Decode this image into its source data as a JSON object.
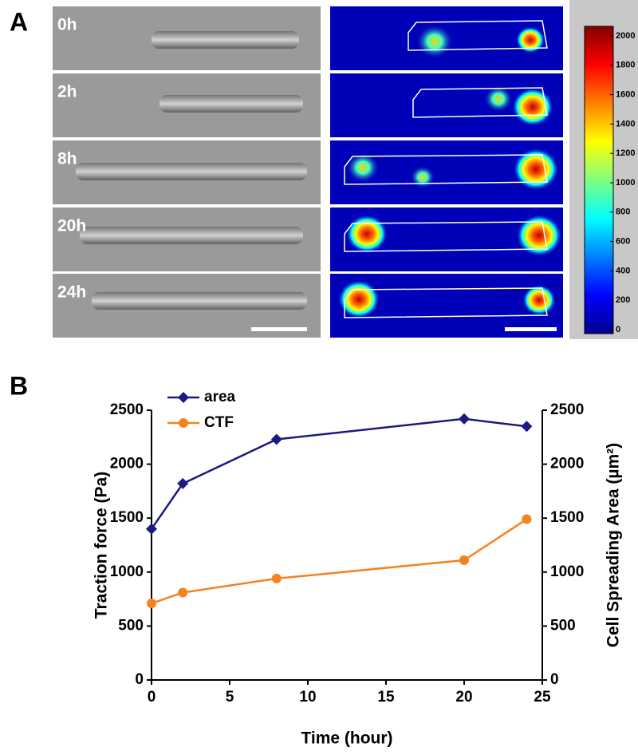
{
  "panel_a": {
    "label": "A",
    "time_labels": [
      "0h",
      "2h",
      "8h",
      "20h",
      "24h"
    ],
    "colorbar": {
      "lim": [
        0,
        2000
      ],
      "ticks": [
        0,
        200,
        400,
        600,
        800,
        1000,
        1200,
        1400,
        1600,
        1800,
        2000
      ]
    }
  },
  "panel_b_label": "B",
  "chart_data": {
    "type": "line",
    "x_label": "Time (hour)",
    "y_label": "Traction force (Pa)",
    "y2_label": "Cell Spreading Area (µm²)",
    "x": [
      0,
      2,
      8,
      20,
      24
    ],
    "xlim": [
      0,
      25
    ],
    "xticks": [
      0,
      5,
      10,
      15,
      20,
      25
    ],
    "ylim": [
      0,
      2500
    ],
    "yticks": [
      0,
      500,
      1000,
      1500,
      2000,
      2500
    ],
    "y2lim": [
      0,
      2500
    ],
    "y2ticks": [
      0,
      500,
      1000,
      1500,
      2000,
      2500
    ],
    "legend": "upper left",
    "series": [
      {
        "name": "area",
        "color": "#1a1a80",
        "marker": "diamond",
        "axis": "y2",
        "values": [
          1400,
          1820,
          2230,
          2420,
          2350
        ]
      },
      {
        "name": "CTF",
        "color": "#f58220",
        "marker": "circle",
        "values": [
          710,
          810,
          940,
          1110,
          1490
        ]
      }
    ]
  }
}
